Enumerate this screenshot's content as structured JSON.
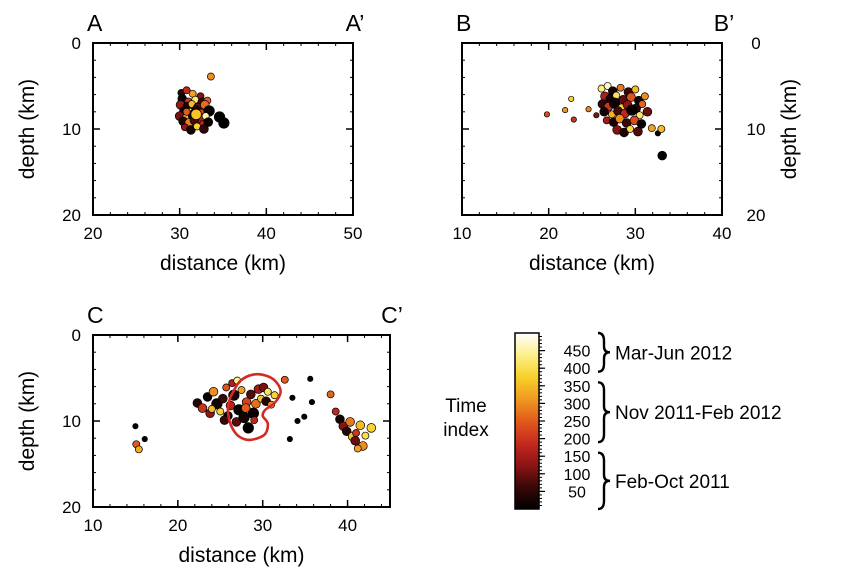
{
  "chart_data": [
    {
      "type": "scatter",
      "panel": "A",
      "label_left": "A",
      "label_right": "A’",
      "xlabel": "distance (km)",
      "ylabel": "depth (km)",
      "xlim": [
        20,
        50
      ],
      "ylim": [
        0,
        20
      ],
      "y_inverted": true,
      "xticks": [
        20,
        30,
        40,
        50
      ],
      "yticks": [
        0,
        10,
        20
      ],
      "ytick_side": "left",
      "points": [
        [
          30.2,
          5.8,
          40,
          3
        ],
        [
          30.8,
          5.5,
          180,
          3
        ],
        [
          31.5,
          5.9,
          320,
          3
        ],
        [
          32.4,
          6.2,
          120,
          3
        ],
        [
          33.6,
          3.9,
          300,
          3
        ],
        [
          30.3,
          6.5,
          10,
          4
        ],
        [
          31.0,
          6.8,
          200,
          3
        ],
        [
          31.8,
          6.6,
          430,
          3
        ],
        [
          32.6,
          6.9,
          60,
          4
        ],
        [
          33.2,
          6.7,
          250,
          3
        ],
        [
          30.1,
          7.2,
          140,
          4
        ],
        [
          30.9,
          7.4,
          20,
          4
        ],
        [
          31.4,
          7.1,
          350,
          3
        ],
        [
          32.1,
          7.5,
          90,
          4
        ],
        [
          32.9,
          7.2,
          270,
          4
        ],
        [
          30.5,
          7.9,
          15,
          4
        ],
        [
          31.2,
          8.1,
          400,
          4
        ],
        [
          31.9,
          7.8,
          30,
          4
        ],
        [
          32.5,
          8.2,
          220,
          4
        ],
        [
          33.4,
          7.9,
          5,
          5
        ],
        [
          30.0,
          8.5,
          110,
          4
        ],
        [
          30.7,
          8.7,
          330,
          3
        ],
        [
          31.6,
          8.4,
          25,
          5
        ],
        [
          32.3,
          8.8,
          160,
          5
        ],
        [
          33.0,
          8.5,
          450,
          3
        ],
        [
          30.4,
          9.1,
          35,
          4
        ],
        [
          31.1,
          9.3,
          290,
          4
        ],
        [
          31.7,
          9.0,
          70,
          4
        ],
        [
          32.7,
          9.4,
          180,
          3
        ],
        [
          33.3,
          9.2,
          15,
          4
        ],
        [
          30.6,
          9.8,
          130,
          3
        ],
        [
          31.3,
          10.1,
          20,
          4
        ],
        [
          32.0,
          9.7,
          380,
          3
        ],
        [
          32.8,
          10.0,
          50,
          4
        ],
        [
          34.6,
          8.6,
          5,
          5
        ],
        [
          35.1,
          9.3,
          0,
          5
        ],
        [
          31.9,
          8.3,
          360,
          5
        ],
        [
          30.8,
          8.0,
          250,
          3
        ]
      ]
    },
    {
      "type": "scatter",
      "panel": "B",
      "label_left": "B",
      "label_right": "B’",
      "xlabel": "distance (km)",
      "ylabel": "depth (km)",
      "xlim": [
        10,
        40
      ],
      "ylim": [
        0,
        20
      ],
      "y_inverted": true,
      "xticks": [
        10,
        20,
        30,
        40
      ],
      "yticks": [
        0,
        10,
        20
      ],
      "ytick_side": "right",
      "points": [
        [
          19.8,
          8.3,
          230,
          2
        ],
        [
          21.9,
          7.8,
          310,
          2
        ],
        [
          22.6,
          6.5,
          380,
          2
        ],
        [
          22.9,
          8.9,
          200,
          2
        ],
        [
          24.6,
          7.7,
          290,
          2
        ],
        [
          25.5,
          8.4,
          120,
          2
        ],
        [
          26.1,
          5.3,
          430,
          3
        ],
        [
          26.8,
          5.0,
          470,
          3
        ],
        [
          27.4,
          5.6,
          20,
          4
        ],
        [
          28.3,
          5.2,
          280,
          3
        ],
        [
          29.2,
          5.7,
          60,
          4
        ],
        [
          30.0,
          5.4,
          350,
          3
        ],
        [
          26.5,
          6.2,
          160,
          4
        ],
        [
          27.1,
          6.5,
          30,
          4
        ],
        [
          27.8,
          6.1,
          410,
          3
        ],
        [
          28.6,
          6.6,
          90,
          4
        ],
        [
          29.5,
          6.3,
          240,
          4
        ],
        [
          30.4,
          6.7,
          10,
          4
        ],
        [
          31.1,
          6.2,
          300,
          3
        ],
        [
          26.2,
          7.1,
          50,
          4
        ],
        [
          26.9,
          7.4,
          200,
          4
        ],
        [
          27.6,
          7.0,
          15,
          5
        ],
        [
          28.4,
          7.5,
          380,
          3
        ],
        [
          29.1,
          7.2,
          130,
          4
        ],
        [
          30.1,
          7.6,
          40,
          4
        ],
        [
          30.8,
          7.1,
          260,
          3
        ],
        [
          26.4,
          8.0,
          20,
          4
        ],
        [
          27.3,
          8.3,
          340,
          3
        ],
        [
          28.0,
          7.9,
          70,
          4
        ],
        [
          28.8,
          8.2,
          180,
          4
        ],
        [
          29.6,
          7.8,
          5,
          5
        ],
        [
          30.5,
          8.4,
          420,
          3
        ],
        [
          31.4,
          8.0,
          100,
          4
        ],
        [
          26.7,
          9.0,
          150,
          3
        ],
        [
          27.5,
          9.2,
          25,
          4
        ],
        [
          28.2,
          8.8,
          300,
          4
        ],
        [
          29.0,
          9.3,
          60,
          4
        ],
        [
          29.9,
          9.0,
          230,
          4
        ],
        [
          30.7,
          9.4,
          10,
          4
        ],
        [
          27.9,
          10.1,
          120,
          4
        ],
        [
          28.7,
          10.4,
          30,
          4
        ],
        [
          29.4,
          10.0,
          390,
          3
        ],
        [
          30.3,
          10.3,
          80,
          4
        ],
        [
          31.9,
          9.9,
          320,
          3
        ],
        [
          32.6,
          10.5,
          2,
          2
        ],
        [
          33.0,
          10.0,
          350,
          3
        ],
        [
          33.1,
          13.1,
          0,
          4
        ]
      ]
    },
    {
      "type": "scatter",
      "panel": "C",
      "label_left": "C",
      "label_right": "C’",
      "xlabel": "distance (km)",
      "ylabel": "depth (km)",
      "xlim": [
        10,
        45
      ],
      "ylim": [
        0,
        20
      ],
      "y_inverted": true,
      "xticks": [
        10,
        20,
        30,
        40
      ],
      "yticks": [
        0,
        10,
        20
      ],
      "ytick_side": "left",
      "points": [
        [
          15.0,
          10.6,
          0,
          2
        ],
        [
          15.1,
          12.7,
          250,
          3
        ],
        [
          15.4,
          13.3,
          330,
          3
        ],
        [
          16.1,
          12.1,
          0,
          2
        ],
        [
          22.3,
          7.9,
          40,
          4
        ],
        [
          22.9,
          8.5,
          200,
          4
        ],
        [
          23.5,
          7.2,
          10,
          4
        ],
        [
          23.8,
          9.1,
          130,
          4
        ],
        [
          24.2,
          6.6,
          300,
          4
        ],
        [
          24.6,
          8.0,
          20,
          5
        ],
        [
          25.0,
          8.9,
          380,
          3
        ],
        [
          25.3,
          7.4,
          60,
          4
        ],
        [
          25.7,
          6.1,
          240,
          3
        ],
        [
          25.9,
          9.4,
          15,
          4
        ],
        [
          26.2,
          8.2,
          170,
          4
        ],
        [
          26.6,
          7.0,
          30,
          5
        ],
        [
          26.9,
          10.1,
          90,
          4
        ],
        [
          27.2,
          8.7,
          5,
          5
        ],
        [
          27.5,
          6.4,
          320,
          3
        ],
        [
          27.8,
          9.6,
          20,
          5
        ],
        [
          28.1,
          7.8,
          220,
          4
        ],
        [
          28.3,
          10.8,
          0,
          5
        ],
        [
          28.6,
          6.9,
          80,
          4
        ],
        [
          28.9,
          9.1,
          10,
          5
        ],
        [
          29.2,
          8.0,
          270,
          4
        ],
        [
          29.5,
          6.3,
          150,
          4
        ],
        [
          29.8,
          7.4,
          360,
          3
        ],
        [
          30.1,
          6.1,
          110,
          4
        ],
        [
          30.4,
          7.7,
          40,
          4
        ],
        [
          30.6,
          6.6,
          410,
          3
        ],
        [
          31.0,
          8.1,
          300,
          3
        ],
        [
          31.4,
          7.0,
          380,
          3
        ],
        [
          26.4,
          5.6,
          160,
          3
        ],
        [
          27.0,
          5.3,
          440,
          3
        ],
        [
          24.0,
          8.6,
          350,
          3
        ],
        [
          25.5,
          9.9,
          60,
          4
        ],
        [
          28.0,
          8.5,
          250,
          4
        ],
        [
          29.0,
          9.9,
          180,
          3
        ],
        [
          33.2,
          12.1,
          0,
          2
        ],
        [
          34.1,
          10.0,
          0,
          2
        ],
        [
          34.9,
          9.5,
          0,
          2
        ],
        [
          35.6,
          5.1,
          0,
          2
        ],
        [
          35.8,
          7.8,
          0,
          2
        ],
        [
          32.6,
          5.2,
          250,
          3
        ],
        [
          33.5,
          7.3,
          0,
          2
        ],
        [
          38.0,
          6.9,
          260,
          3
        ],
        [
          38.6,
          8.9,
          180,
          3
        ],
        [
          39.1,
          9.8,
          20,
          4
        ],
        [
          39.5,
          10.6,
          120,
          4
        ],
        [
          39.9,
          11.2,
          40,
          4
        ],
        [
          40.3,
          10.1,
          280,
          4
        ],
        [
          40.6,
          11.8,
          360,
          4
        ],
        [
          41.0,
          11.4,
          200,
          3
        ],
        [
          41.5,
          10.5,
          350,
          4
        ],
        [
          41.8,
          12.9,
          300,
          4
        ],
        [
          42.1,
          11.7,
          400,
          3
        ],
        [
          42.8,
          10.8,
          380,
          4
        ],
        [
          40.9,
          12.3,
          100,
          4
        ],
        [
          41.2,
          13.2,
          320,
          3
        ]
      ],
      "outline": [
        [
          26.2,
          7.2
        ],
        [
          27.3,
          5.4
        ],
        [
          28.9,
          4.6
        ],
        [
          30.6,
          4.8
        ],
        [
          31.7,
          5.6
        ],
        [
          32.1,
          6.7
        ],
        [
          31.4,
          7.9
        ],
        [
          30.3,
          8.7
        ],
        [
          30.0,
          9.4
        ],
        [
          30.6,
          10.3
        ],
        [
          30.2,
          11.6
        ],
        [
          28.5,
          12.2
        ],
        [
          27.2,
          11.8
        ],
        [
          26.4,
          10.8
        ],
        [
          26.0,
          9.6
        ],
        [
          25.9,
          8.4
        ],
        [
          26.2,
          7.2
        ]
      ],
      "outline_color": "#d42a24"
    }
  ],
  "legend": {
    "title_line1": "Time",
    "title_line2": "index",
    "colorbar_range": [
      0,
      500
    ],
    "colorbar_ticks": [
      50,
      100,
      150,
      200,
      250,
      300,
      350,
      400,
      450
    ],
    "colormap": [
      "#000000",
      "#3a0808",
      "#8c1414",
      "#c62a1e",
      "#e25a1c",
      "#f09a20",
      "#f8d02a",
      "#fcf08a",
      "#ffffff"
    ],
    "periods": [
      {
        "label": "Mar-Jun 2012",
        "range": [
          390,
          500
        ]
      },
      {
        "label": "Nov 2011-Feb 2012",
        "range": [
          190,
          360
        ]
      },
      {
        "label": "Feb-Oct 2011",
        "range": [
          0,
          160
        ]
      }
    ]
  }
}
